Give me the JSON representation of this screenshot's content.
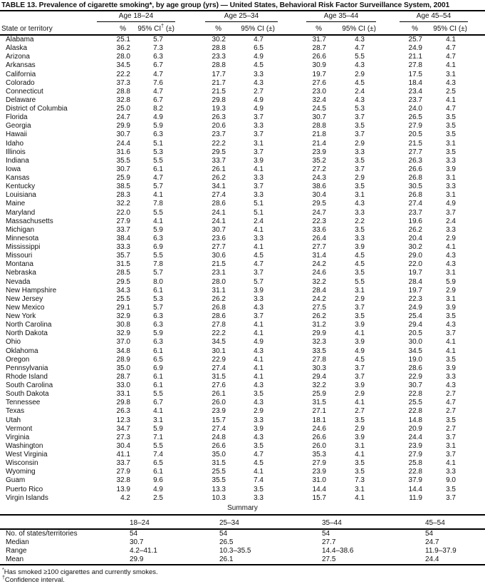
{
  "title": "TABLE 13. Prevalence of cigarette smoking*, by age group (yrs) — United States, Behavioral Risk Factor Surveillance System, 2001",
  "columns": {
    "state_header": "State or territory",
    "groups": [
      {
        "label": "Age 18–24",
        "pct": "%",
        "ci_pre": "95% CI",
        "ci_sup": "†",
        "ci_post": " (±)"
      },
      {
        "label": "Age 25–34",
        "pct": "%",
        "ci_pre": "95% CI",
        "ci_sup": "",
        "ci_post": " (±)"
      },
      {
        "label": "Age 35–44",
        "pct": "%",
        "ci_pre": "95% CI",
        "ci_sup": "",
        "ci_post": " (±)"
      },
      {
        "label": "Age 45–54",
        "pct": "%",
        "ci_pre": "95% CI",
        "ci_sup": "",
        "ci_post": " (±)"
      }
    ]
  },
  "rows": [
    {
      "state": "Alabama",
      "values": [
        "25.1",
        "5.7",
        "30.2",
        "4.7",
        "31.7",
        "4.3",
        "25.7",
        "4.1"
      ]
    },
    {
      "state": "Alaska",
      "values": [
        "36.2",
        "7.3",
        "28.8",
        "6.5",
        "28.7",
        "4.7",
        "24.9",
        "4.7"
      ]
    },
    {
      "state": "Arizona",
      "values": [
        "28.0",
        "6.3",
        "23.3",
        "4.9",
        "26.6",
        "5.5",
        "21.1",
        "4.7"
      ]
    },
    {
      "state": "Arkansas",
      "values": [
        "34.5",
        "6.7",
        "28.8",
        "4.5",
        "30.9",
        "4.3",
        "27.8",
        "4.1"
      ]
    },
    {
      "state": "California",
      "values": [
        "22.2",
        "4.7",
        "17.7",
        "3.3",
        "19.7",
        "2.9",
        "17.5",
        "3.1"
      ]
    },
    {
      "state": "Colorado",
      "values": [
        "37.3",
        "7.6",
        "21.7",
        "4.3",
        "27.6",
        "4.5",
        "18.4",
        "4.3"
      ]
    },
    {
      "state": "Connecticut",
      "values": [
        "28.8",
        "4.7",
        "21.5",
        "2.7",
        "23.0",
        "2.4",
        "23.4",
        "2.5"
      ]
    },
    {
      "state": "Delaware",
      "values": [
        "32.8",
        "6.7",
        "29.8",
        "4.9",
        "32.4",
        "4.3",
        "23.7",
        "4.1"
      ]
    },
    {
      "state": "District of Columbia",
      "values": [
        "25.0",
        "8.2",
        "19.3",
        "4.9",
        "24.5",
        "5.3",
        "24.0",
        "4.7"
      ]
    },
    {
      "state": "Florida",
      "values": [
        "24.7",
        "4.9",
        "26.3",
        "3.7",
        "30.7",
        "3.7",
        "26.5",
        "3.5"
      ]
    },
    {
      "state": "Georgia",
      "values": [
        "29.9",
        "5.9",
        "20.6",
        "3.3",
        "28.8",
        "3.5",
        "27.9",
        "3.5"
      ]
    },
    {
      "state": "Hawaii",
      "values": [
        "30.7",
        "6.3",
        "23.7",
        "3.7",
        "21.8",
        "3.7",
        "20.5",
        "3.5"
      ]
    },
    {
      "state": "Idaho",
      "values": [
        "24.4",
        "5.1",
        "22.2",
        "3.1",
        "21.4",
        "2.9",
        "21.5",
        "3.1"
      ]
    },
    {
      "state": "Illinois",
      "values": [
        "31.6",
        "5.3",
        "29.5",
        "3.7",
        "23.9",
        "3.3",
        "27.7",
        "3.5"
      ]
    },
    {
      "state": "Indiana",
      "values": [
        "35.5",
        "5.5",
        "33.7",
        "3.9",
        "35.2",
        "3.5",
        "26.3",
        "3.3"
      ]
    },
    {
      "state": "Iowa",
      "values": [
        "30.7",
        "6.1",
        "26.1",
        "4.1",
        "27.2",
        "3.7",
        "26.6",
        "3.9"
      ]
    },
    {
      "state": "Kansas",
      "values": [
        "25.9",
        "4.7",
        "26.2",
        "3.3",
        "24.3",
        "2.9",
        "26.8",
        "3.1"
      ]
    },
    {
      "state": "Kentucky",
      "values": [
        "38.5",
        "5.7",
        "34.1",
        "3.7",
        "38.6",
        "3.5",
        "30.5",
        "3.3"
      ]
    },
    {
      "state": "Louisiana",
      "values": [
        "28.3",
        "4.1",
        "27.4",
        "3.3",
        "30.4",
        "3.1",
        "26.8",
        "3.1"
      ]
    },
    {
      "state": "Maine",
      "values": [
        "32.2",
        "7.8",
        "28.6",
        "5.1",
        "29.5",
        "4.3",
        "27.4",
        "4.9"
      ]
    },
    {
      "state": "Maryland",
      "values": [
        "22.0",
        "5.5",
        "24.1",
        "5.1",
        "24.7",
        "3.3",
        "23.7",
        "3.7"
      ]
    },
    {
      "state": "Massachusetts",
      "values": [
        "27.9",
        "4.1",
        "24.1",
        "2.4",
        "22.3",
        "2.2",
        "19.6",
        "2.4"
      ]
    },
    {
      "state": "Michigan",
      "values": [
        "33.7",
        "5.9",
        "30.7",
        "4.1",
        "33.6",
        "3.5",
        "26.2",
        "3.3"
      ]
    },
    {
      "state": "Minnesota",
      "values": [
        "38.4",
        "6.3",
        "23.6",
        "3.3",
        "26.4",
        "3.3",
        "20.4",
        "2.9"
      ]
    },
    {
      "state": "Mississippi",
      "values": [
        "33.3",
        "6.9",
        "27.7",
        "4.1",
        "27.7",
        "3.9",
        "30.2",
        "4.1"
      ]
    },
    {
      "state": "Missouri",
      "values": [
        "35.7",
        "5.5",
        "30.6",
        "4.5",
        "31.4",
        "4.5",
        "29.0",
        "4.3"
      ]
    },
    {
      "state": "Montana",
      "values": [
        "31.5",
        "7.8",
        "21.5",
        "4.7",
        "24.2",
        "4.5",
        "22.0",
        "4.3"
      ]
    },
    {
      "state": "Nebraska",
      "values": [
        "28.5",
        "5.7",
        "23.1",
        "3.7",
        "24.6",
        "3.5",
        "19.7",
        "3.1"
      ]
    },
    {
      "state": "Nevada",
      "values": [
        "29.5",
        "8.0",
        "28.0",
        "5.7",
        "32.2",
        "5.5",
        "28.4",
        "5.9"
      ]
    },
    {
      "state": "New Hampshire",
      "values": [
        "34.3",
        "6.1",
        "31.1",
        "3.9",
        "28.4",
        "3.1",
        "19.7",
        "2.9"
      ]
    },
    {
      "state": "New Jersey",
      "values": [
        "25.5",
        "5.3",
        "26.2",
        "3.3",
        "24.2",
        "2.9",
        "22.3",
        "3.1"
      ]
    },
    {
      "state": "New Mexico",
      "values": [
        "29.1",
        "5.7",
        "26.8",
        "4.3",
        "27.5",
        "3.7",
        "24.9",
        "3.9"
      ]
    },
    {
      "state": "New York",
      "values": [
        "32.9",
        "6.3",
        "28.6",
        "3.7",
        "26.2",
        "3.5",
        "25.4",
        "3.5"
      ]
    },
    {
      "state": "North Carolina",
      "values": [
        "30.8",
        "6.3",
        "27.8",
        "4.1",
        "31.2",
        "3.9",
        "29.4",
        "4.3"
      ]
    },
    {
      "state": "North Dakota",
      "values": [
        "32.9",
        "5.9",
        "22.2",
        "4.1",
        "29.9",
        "4.1",
        "20.5",
        "3.7"
      ]
    },
    {
      "state": "Ohio",
      "values": [
        "37.0",
        "6.3",
        "34.5",
        "4.9",
        "32.3",
        "3.9",
        "30.0",
        "4.1"
      ]
    },
    {
      "state": "Oklahoma",
      "values": [
        "34.8",
        "6.1",
        "30.1",
        "4.3",
        "33.5",
        "4.9",
        "34.5",
        "4.1"
      ]
    },
    {
      "state": "Oregon",
      "values": [
        "28.9",
        "6.5",
        "22.9",
        "4.1",
        "27.8",
        "4.5",
        "19.0",
        "3.5"
      ]
    },
    {
      "state": "Pennsylvania",
      "values": [
        "35.0",
        "6.9",
        "27.4",
        "4.1",
        "30.3",
        "3.7",
        "28.6",
        "3.9"
      ]
    },
    {
      "state": "Rhode Island",
      "values": [
        "28.7",
        "6.1",
        "31.5",
        "4.1",
        "29.4",
        "3.7",
        "22.9",
        "3.3"
      ]
    },
    {
      "state": "South Carolina",
      "values": [
        "33.0",
        "6.1",
        "27.6",
        "4.3",
        "32.2",
        "3.9",
        "30.7",
        "4.3"
      ]
    },
    {
      "state": "South Dakota",
      "values": [
        "33.1",
        "5.5",
        "26.1",
        "3.5",
        "25.9",
        "2.9",
        "22.8",
        "2.7"
      ]
    },
    {
      "state": "Tennessee",
      "values": [
        "29.8",
        "6.7",
        "26.0",
        "4.3",
        "31.5",
        "4.1",
        "25.5",
        "4.7"
      ]
    },
    {
      "state": "Texas",
      "values": [
        "26.3",
        "4.1",
        "23.9",
        "2.9",
        "27.1",
        "2.7",
        "22.8",
        "2.7"
      ]
    },
    {
      "state": "Utah",
      "values": [
        "12.3",
        "3.1",
        "15.7",
        "3.3",
        "18.1",
        "3.5",
        "14.8",
        "3.5"
      ]
    },
    {
      "state": "Vermont",
      "values": [
        "34.7",
        "5.9",
        "27.4",
        "3.9",
        "24.6",
        "2.9",
        "20.9",
        "2.7"
      ]
    },
    {
      "state": "Virginia",
      "values": [
        "27.3",
        "7.1",
        "24.8",
        "4.3",
        "26.6",
        "3.9",
        "24.4",
        "3.7"
      ]
    },
    {
      "state": "Washington",
      "values": [
        "30.4",
        "5.5",
        "26.6",
        "3.5",
        "26.0",
        "3.1",
        "23.9",
        "3.1"
      ]
    },
    {
      "state": "West Virginia",
      "values": [
        "41.1",
        "7.4",
        "35.0",
        "4.7",
        "35.3",
        "4.1",
        "27.9",
        "3.7"
      ]
    },
    {
      "state": "Wisconsin",
      "values": [
        "33.7",
        "6.5",
        "31.5",
        "4.5",
        "27.9",
        "3.5",
        "25.8",
        "4.1"
      ]
    },
    {
      "state": "Wyoming",
      "values": [
        "27.9",
        "6.1",
        "25.5",
        "4.1",
        "23.9",
        "3.5",
        "22.8",
        "3.3"
      ]
    },
    {
      "state": "Guam",
      "values": [
        "32.8",
        "9.6",
        "35.5",
        "7.4",
        "31.0",
        "7.3",
        "37.9",
        "9.0"
      ]
    },
    {
      "state": "Puerto Rico",
      "values": [
        "13.9",
        "4.9",
        "13.3",
        "3.5",
        "14.4",
        "3.1",
        "14.4",
        "3.5"
      ]
    },
    {
      "state": "Virgin Islands",
      "values": [
        "4.2",
        "2.5",
        "10.3",
        "3.3",
        "15.7",
        "4.1",
        "11.9",
        "3.7"
      ]
    }
  ],
  "summary": {
    "heading": "Summary",
    "age_headers": [
      "18–24",
      "25–34",
      "35–44",
      "45–54"
    ],
    "rows": [
      {
        "label": "No. of states/territories",
        "values": [
          "54",
          "54",
          "54",
          "54"
        ]
      },
      {
        "label": "Median",
        "values": [
          "30.7",
          "26.5",
          "27.7",
          "24.7"
        ]
      },
      {
        "label": "Range",
        "values": [
          "4.2–41.1",
          "10.3–35.5",
          "14.4–38.6",
          "11.9–37.9"
        ]
      },
      {
        "label": "Mean",
        "values": [
          "29.9",
          "26.1",
          "27.5",
          "24.4"
        ]
      }
    ]
  },
  "footnotes": [
    {
      "marker": "*",
      "text": "Has smoked ≥100 cigarettes and currently smokes."
    },
    {
      "marker": "†",
      "text": "Confidence interval."
    }
  ]
}
